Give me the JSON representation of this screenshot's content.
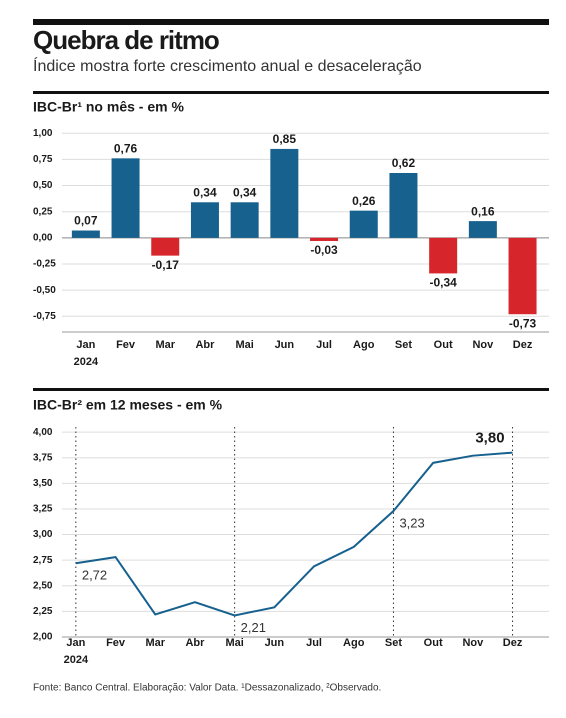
{
  "title": "Quebra de ritmo",
  "subtitle": "Índice mostra forte crescimento anual e desaceleração",
  "footer": "Fonte: Banco Central. Elaboração: Valor Data. ¹Dessazonalizado, ²Observado.",
  "chart_data": [
    {
      "type": "bar",
      "title": "IBC-Br¹ no mês - em %",
      "categories": [
        "Jan",
        "Fev",
        "Mar",
        "Abr",
        "Mai",
        "Jun",
        "Jul",
        "Ago",
        "Set",
        "Out",
        "Nov",
        "Dez"
      ],
      "year_label": "2024",
      "values": [
        0.07,
        0.76,
        -0.17,
        0.34,
        0.34,
        0.85,
        -0.03,
        0.26,
        0.62,
        -0.34,
        0.16,
        -0.73
      ],
      "value_labels": [
        "0,07",
        "0,76",
        "-0,17",
        "0,34",
        "0,34",
        "0,85",
        "-0,03",
        "0,26",
        "0,62",
        "-0,34",
        "0,16",
        "-0,73"
      ],
      "color": "#17618e",
      "negative_color": "#d7262b",
      "ylim": [
        -0.9,
        1.05
      ],
      "yticks": [
        {
          "value": 1,
          "label": "1,00"
        },
        {
          "value": 0.75,
          "label": "0,75"
        },
        {
          "value": 0.5,
          "label": "0,50"
        },
        {
          "value": 0.25,
          "label": "0,25"
        },
        {
          "value": 0,
          "label": "0,00"
        },
        {
          "value": -0.25,
          "label": "-0,25"
        },
        {
          "value": -0.5,
          "label": "-0,50"
        },
        {
          "value": -0.75,
          "label": "-0,75"
        }
      ],
      "grid": true
    },
    {
      "type": "line",
      "title": "IBC-Br² em 12 meses - em %",
      "categories": [
        "Jan",
        "Fev",
        "Mar",
        "Abr",
        "Mai",
        "Jun",
        "Jul",
        "Ago",
        "Set",
        "Out",
        "Nov",
        "Dez"
      ],
      "year_label": "2024",
      "values": [
        2.72,
        2.78,
        2.22,
        2.34,
        2.21,
        2.29,
        2.69,
        2.88,
        3.23,
        3.7,
        3.77,
        3.8
      ],
      "value_labels": [
        "2,72",
        null,
        null,
        null,
        "2,21",
        null,
        null,
        null,
        "3,23",
        null,
        null,
        "3,80"
      ],
      "color": "#17618e",
      "ylim": [
        2.0,
        4.05
      ],
      "yticks": [
        {
          "value": 4,
          "label": "4,00"
        },
        {
          "value": 3.75,
          "label": "3,75"
        },
        {
          "value": 3.5,
          "label": "3,50"
        },
        {
          "value": 3.25,
          "label": "3,25"
        },
        {
          "value": 3,
          "label": "3,00"
        },
        {
          "value": 2.75,
          "label": "2,75"
        },
        {
          "value": 2.5,
          "label": "2,50"
        },
        {
          "value": 2.25,
          "label": "2,25"
        },
        {
          "value": 2,
          "label": "2,00"
        }
      ],
      "grid": true
    }
  ]
}
